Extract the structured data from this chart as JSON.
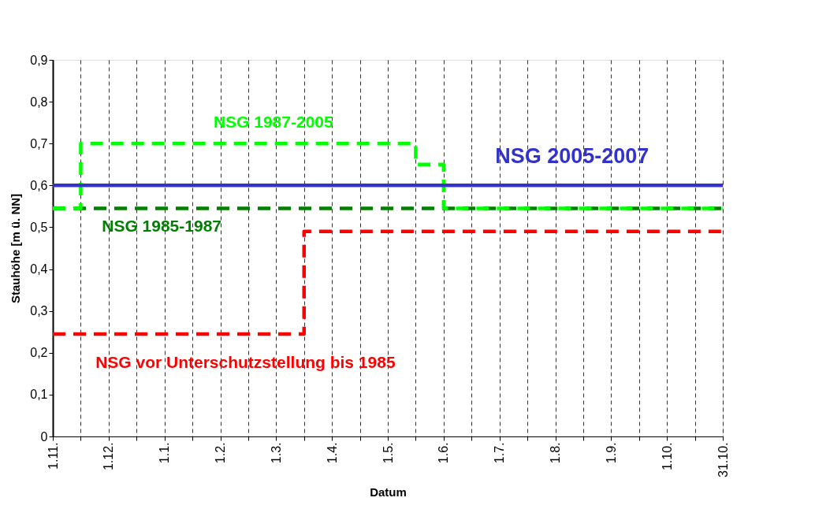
{
  "chart_data": {
    "type": "step",
    "xlabel": "Datum",
    "ylabel": "Stauhöhe [m ü. NN]",
    "categories": [
      "1.11.",
      null,
      "1.12.",
      null,
      "1.1.",
      null,
      "1.2.",
      null,
      "1.3.",
      null,
      "1.4.",
      null,
      "1.5.",
      null,
      "1.6.",
      null,
      "1.7.",
      null,
      "1.8.",
      null,
      "1.9.",
      null,
      "1.10.",
      null,
      "31.10."
    ],
    "ylim": [
      0,
      0.9
    ],
    "yticks": [
      0,
      {
        "value": 0.1,
        "label": "0,1"
      },
      {
        "value": 0.2,
        "label": "0,2"
      },
      {
        "value": 0.3,
        "label": "0,3"
      },
      {
        "value": 0.4,
        "label": "0,4"
      },
      {
        "value": 0.5,
        "label": "0,5"
      },
      {
        "value": 0.6,
        "label": "0,6"
      },
      {
        "value": 0.7,
        "label": "0,7"
      },
      {
        "value": 0.8,
        "label": "0,8"
      },
      {
        "value": 0.9,
        "label": "0,9"
      }
    ],
    "grid": "x",
    "series": [
      {
        "name": "NSG vor Unterschutzstellung bis 1985",
        "color": "#ff0000",
        "line_style": "dashed",
        "values": [
          0.245,
          0.245,
          0.245,
          0.245,
          0.245,
          0.245,
          0.245,
          0.245,
          0.245,
          0.49,
          0.49,
          0.49,
          0.49,
          0.49,
          0.49,
          0.49,
          0.49,
          0.49,
          0.49,
          0.49,
          0.49,
          0.49,
          0.49,
          0.49,
          0.49
        ]
      },
      {
        "name": "NSG  1985-1987",
        "color": "#008000",
        "line_style": "dashed",
        "values": [
          0.545,
          0.545,
          0.545,
          0.545,
          0.545,
          0.545,
          0.545,
          0.545,
          0.545,
          0.545,
          0.545,
          0.545,
          0.545,
          0.545,
          0.545,
          0.545,
          0.545,
          0.545,
          0.545,
          0.545,
          0.545,
          0.545,
          0.545,
          0.545,
          0.545
        ]
      },
      {
        "name": "NSG  1987-2005",
        "color": "#00ff00",
        "line_style": "dashed",
        "values": [
          0.545,
          0.7,
          0.7,
          0.7,
          0.7,
          0.7,
          0.7,
          0.7,
          0.7,
          0.7,
          0.7,
          0.7,
          0.7,
          0.65,
          0.545,
          0.545,
          0.545,
          0.545,
          0.545,
          0.545,
          0.545,
          0.545,
          0.545,
          0.545,
          0.545
        ]
      },
      {
        "name": "NSG  2005-2007",
        "color": "#3333cc",
        "line_style": "solid",
        "values": [
          0.6,
          0.6,
          0.6,
          0.6,
          0.6,
          0.6,
          0.6,
          0.6,
          0.6,
          0.6,
          0.6,
          0.6,
          0.6,
          0.6,
          0.6,
          0.6,
          0.6,
          0.6,
          0.6,
          0.6,
          0.6,
          0.6,
          0.6,
          0.6,
          0.6
        ]
      }
    ]
  }
}
